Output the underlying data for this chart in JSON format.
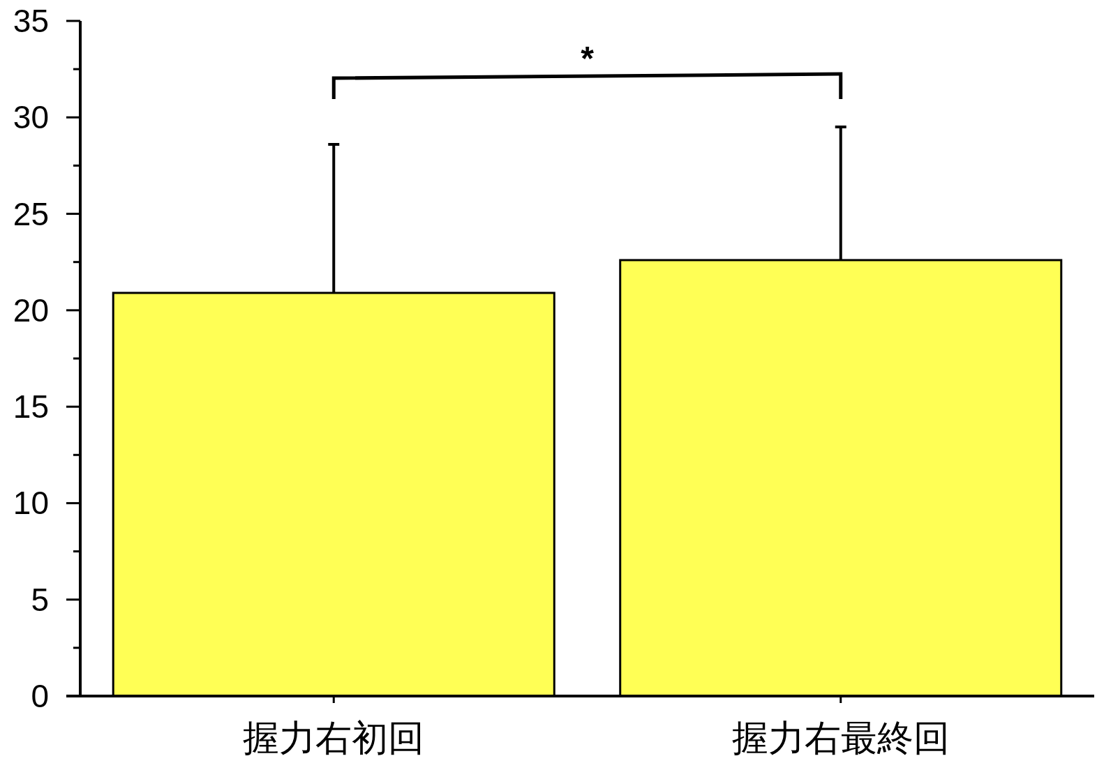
{
  "chart_data": {
    "type": "bar",
    "categories": [
      "握力右初回",
      "握力右最終回"
    ],
    "values": [
      20.9,
      22.6
    ],
    "errors": [
      [
        20.9,
        28.6
      ],
      [
        22.6,
        29.5
      ]
    ],
    "color": "#ffff55",
    "ylim": [
      0,
      35
    ],
    "yticks": [
      0,
      {
        "value": 2.5,
        "label": null
      },
      5,
      {
        "value": 7.5,
        "label": null
      },
      10,
      {
        "value": 12.5,
        "label": null
      },
      15,
      {
        "value": 17.5,
        "label": null
      },
      20,
      {
        "value": 22.5,
        "label": null
      },
      25,
      {
        "value": 27.5,
        "label": null
      },
      30,
      {
        "value": 32.5,
        "label": null
      },
      35
    ],
    "grid": false,
    "annotations": [
      "*"
    ]
  }
}
